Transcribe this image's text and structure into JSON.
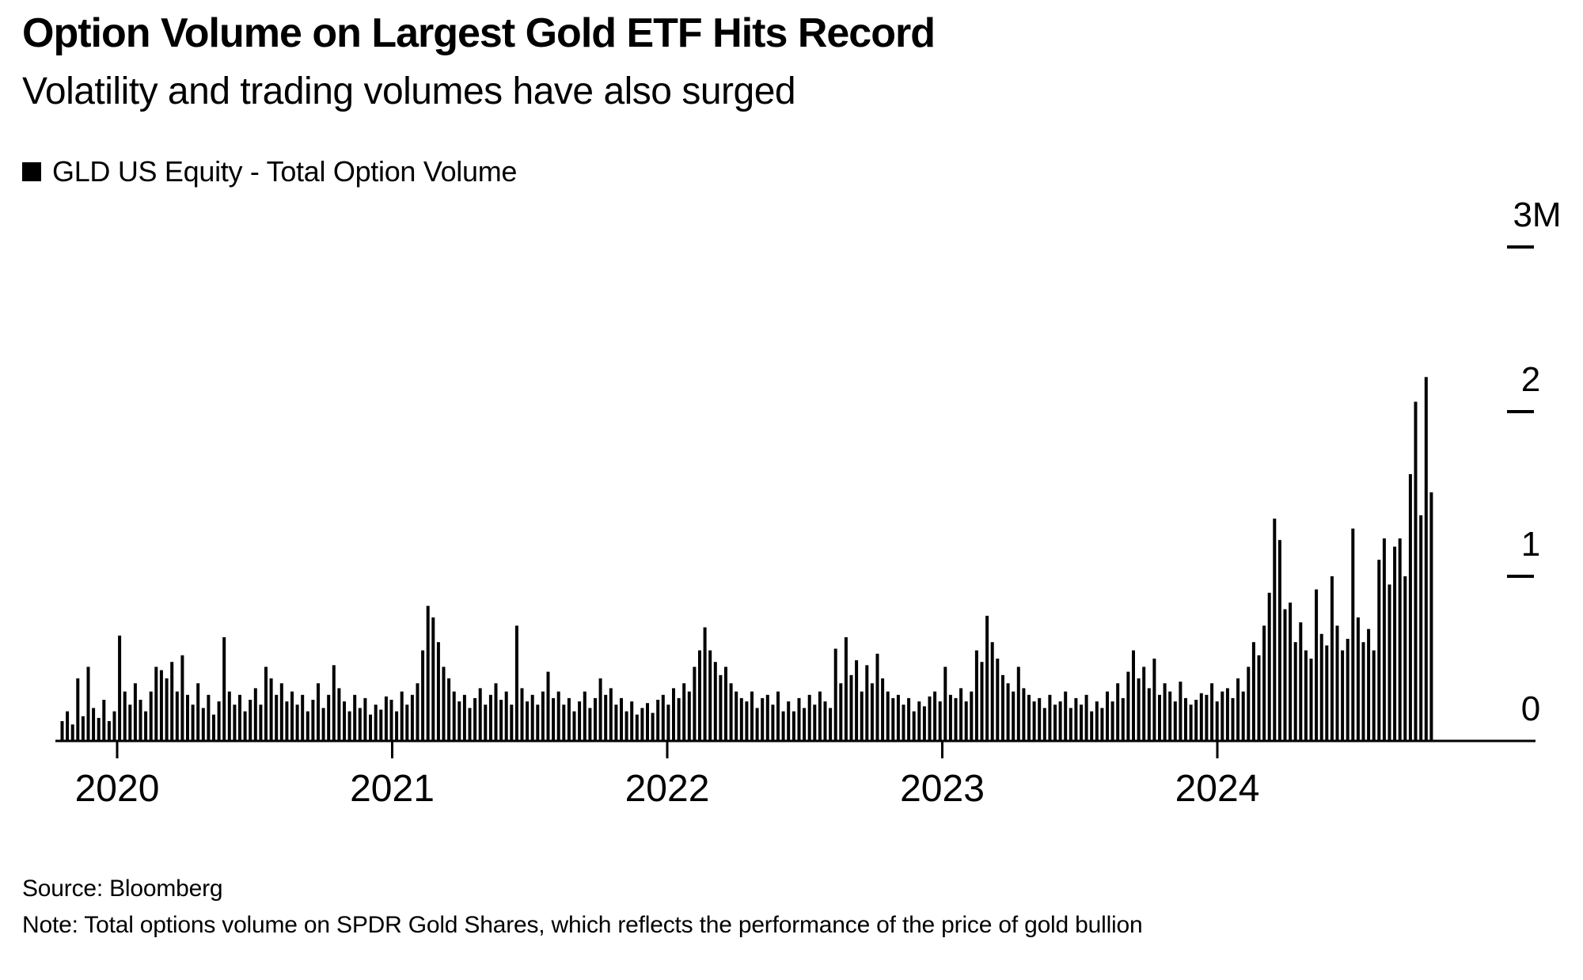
{
  "header": {
    "title": "Option Volume on Largest Gold ETF Hits Record",
    "subtitle": "Volatility and trading volumes have also surged"
  },
  "legend": {
    "label": "GLD US Equity - Total Option Volume",
    "swatch_color": "#000000"
  },
  "footer": {
    "source": "Source: Bloomberg",
    "note": "Note: Total options volume on SPDR Gold Shares, which reflects the performance of the price of gold bullion"
  },
  "colors": {
    "bar": "#000000",
    "axis": "#000000",
    "text": "#000000",
    "background": "#ffffff"
  },
  "chart_data": {
    "type": "bar",
    "title": "GLD US Equity - Total Option Volume",
    "yunit": "M",
    "ylim": [
      0,
      3.3
    ],
    "grid": false,
    "legend_position": "top-left",
    "y_axis_side": "right",
    "y_ticks": [
      {
        "label": "3M",
        "value": 3
      },
      {
        "label": "2",
        "value": 2
      },
      {
        "label": "1",
        "value": 1
      },
      {
        "label": "0",
        "value": 0
      }
    ],
    "x_ticks": [
      {
        "label": "2020",
        "year": 2020
      },
      {
        "label": "2021",
        "year": 2021
      },
      {
        "label": "2022",
        "year": 2022
      },
      {
        "label": "2023",
        "year": 2023
      },
      {
        "label": "2024",
        "year": 2024
      }
    ],
    "x_range_years": [
      2019.78,
      2025.14
    ],
    "series": [
      {
        "name": "GLD US Equity - Total Option Volume",
        "unit": "millions of contracts",
        "cadence": "weekly estimate read from chart",
        "start_year": 2019.8,
        "step_years": 0.019,
        "values": [
          0.12,
          0.18,
          0.1,
          0.38,
          0.15,
          0.45,
          0.2,
          0.14,
          0.25,
          0.12,
          0.18,
          0.64,
          0.3,
          0.22,
          0.35,
          0.25,
          0.18,
          0.3,
          0.45,
          0.43,
          0.38,
          0.48,
          0.3,
          0.52,
          0.28,
          0.22,
          0.35,
          0.2,
          0.28,
          0.16,
          0.24,
          0.63,
          0.3,
          0.22,
          0.28,
          0.18,
          0.25,
          0.32,
          0.22,
          0.45,
          0.38,
          0.28,
          0.35,
          0.24,
          0.3,
          0.22,
          0.28,
          0.18,
          0.25,
          0.35,
          0.2,
          0.28,
          0.46,
          0.32,
          0.24,
          0.18,
          0.28,
          0.2,
          0.26,
          0.16,
          0.22,
          0.19,
          0.27,
          0.25,
          0.18,
          0.3,
          0.22,
          0.28,
          0.35,
          0.55,
          0.82,
          0.75,
          0.6,
          0.45,
          0.38,
          0.3,
          0.24,
          0.28,
          0.2,
          0.26,
          0.32,
          0.22,
          0.28,
          0.35,
          0.25,
          0.3,
          0.22,
          0.7,
          0.32,
          0.24,
          0.28,
          0.22,
          0.3,
          0.42,
          0.26,
          0.3,
          0.22,
          0.26,
          0.18,
          0.24,
          0.3,
          0.2,
          0.26,
          0.38,
          0.28,
          0.32,
          0.22,
          0.26,
          0.18,
          0.24,
          0.16,
          0.2,
          0.23,
          0.17,
          0.25,
          0.28,
          0.22,
          0.32,
          0.26,
          0.35,
          0.3,
          0.45,
          0.55,
          0.69,
          0.55,
          0.48,
          0.4,
          0.45,
          0.35,
          0.3,
          0.26,
          0.24,
          0.3,
          0.2,
          0.26,
          0.28,
          0.22,
          0.3,
          0.18,
          0.24,
          0.18,
          0.26,
          0.2,
          0.28,
          0.22,
          0.3,
          0.24,
          0.2,
          0.56,
          0.35,
          0.63,
          0.4,
          0.49,
          0.3,
          0.46,
          0.35,
          0.53,
          0.38,
          0.3,
          0.26,
          0.28,
          0.22,
          0.26,
          0.18,
          0.24,
          0.21,
          0.27,
          0.3,
          0.24,
          0.45,
          0.28,
          0.26,
          0.32,
          0.24,
          0.3,
          0.55,
          0.48,
          0.76,
          0.6,
          0.5,
          0.4,
          0.35,
          0.3,
          0.45,
          0.32,
          0.28,
          0.24,
          0.26,
          0.2,
          0.28,
          0.22,
          0.24,
          0.3,
          0.2,
          0.26,
          0.22,
          0.28,
          0.18,
          0.24,
          0.2,
          0.3,
          0.24,
          0.35,
          0.26,
          0.42,
          0.55,
          0.38,
          0.45,
          0.32,
          0.5,
          0.28,
          0.35,
          0.3,
          0.24,
          0.36,
          0.26,
          0.22,
          0.25,
          0.29,
          0.28,
          0.35,
          0.24,
          0.3,
          0.32,
          0.26,
          0.38,
          0.3,
          0.45,
          0.6,
          0.52,
          0.7,
          0.9,
          1.35,
          1.22,
          0.8,
          0.84,
          0.6,
          0.72,
          0.55,
          0.5,
          0.92,
          0.65,
          0.58,
          1.0,
          0.7,
          0.55,
          0.62,
          1.29,
          0.75,
          0.6,
          0.68,
          0.55,
          1.1,
          1.23,
          0.95,
          1.18,
          1.23,
          1.0,
          1.62,
          2.06,
          1.37,
          2.21,
          1.51
        ]
      }
    ]
  }
}
